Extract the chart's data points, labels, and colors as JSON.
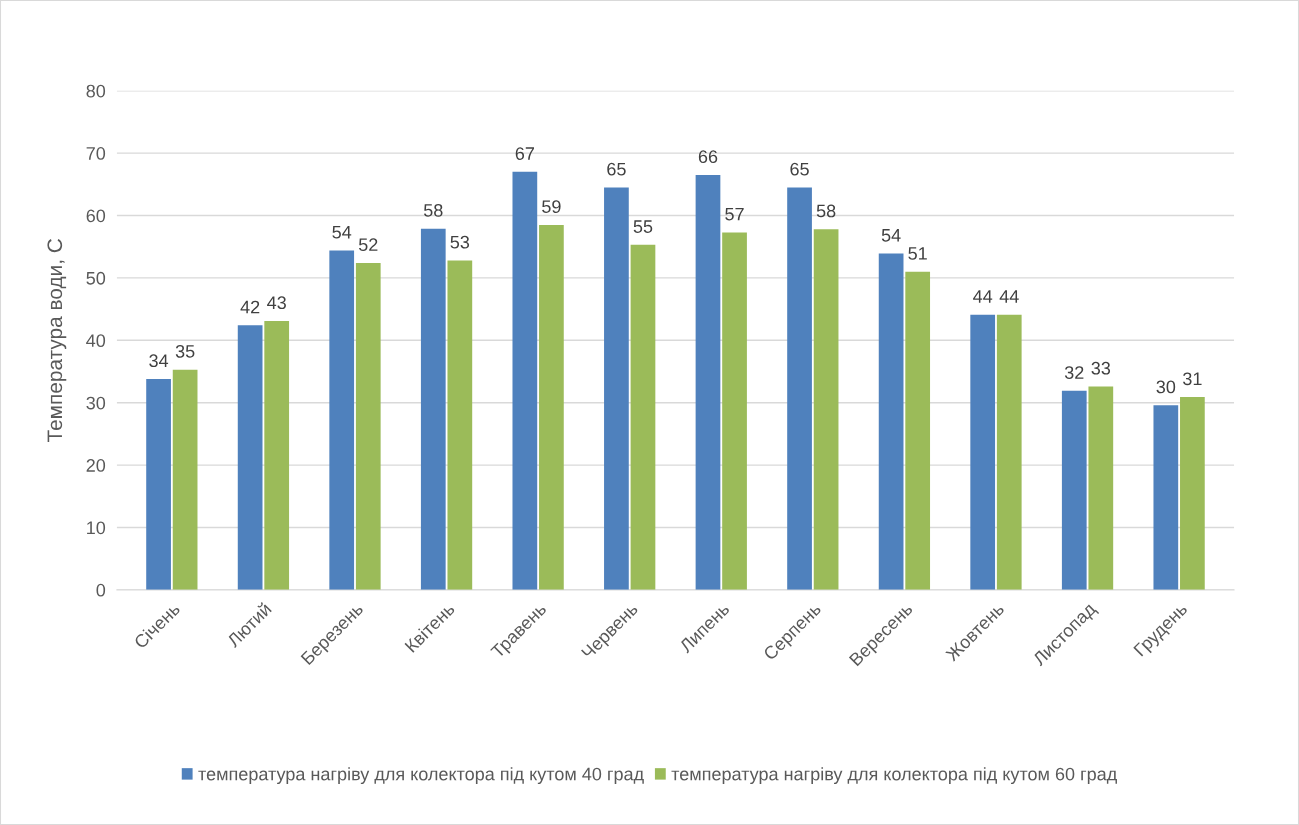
{
  "chart_data": {
    "type": "bar",
    "ylabel": "Температура води, С",
    "categories": [
      "Січень",
      "Лютий",
      "Березень",
      "Квітень",
      "Травень",
      "Червень",
      "Липень",
      "Серпень",
      "Вересень",
      "Жовтень",
      "Листопад",
      "Грудень"
    ],
    "series": [
      {
        "name": "температура нагріву для колектора під кутом 40 град",
        "color": "#4f81bd",
        "values": [
          33.8,
          42.4,
          54.4,
          57.9,
          67.0,
          64.5,
          66.5,
          64.5,
          53.9,
          44.1,
          31.9,
          29.6
        ],
        "value_labels": [
          "34",
          "42",
          "54",
          "58",
          "67",
          "65",
          "66",
          "65",
          "54",
          "44",
          "32",
          "30"
        ]
      },
      {
        "name": "температура нагріву для колектора під кутом 60 град",
        "color": "#9bbb59",
        "values": [
          35.3,
          43.1,
          52.4,
          52.8,
          58.5,
          55.3,
          57.3,
          57.8,
          51.0,
          44.1,
          32.6,
          30.9
        ],
        "value_labels": [
          "35",
          "43",
          "52",
          "53",
          "59",
          "55",
          "57",
          "58",
          "51",
          "44",
          "33",
          "31"
        ]
      }
    ],
    "ylim": [
      0,
      80
    ],
    "yticks": [
      0,
      10,
      20,
      30,
      40,
      50,
      60,
      70,
      80
    ],
    "grid": "y",
    "legend": "bottom"
  }
}
